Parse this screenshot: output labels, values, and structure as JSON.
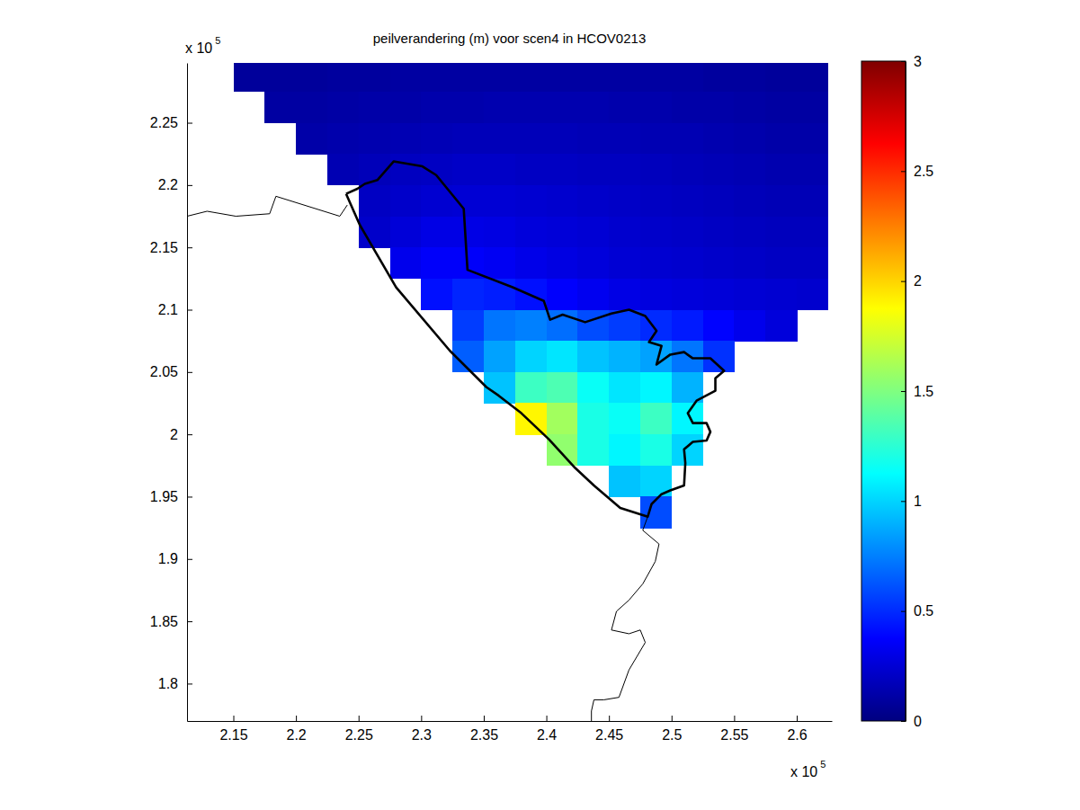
{
  "chart_data": {
    "type": "heatmap",
    "title": "peilverandering (m) voor scen4 in HCOV0213",
    "color": "jet",
    "x_multiplier": {
      "base": "x 10",
      "exponent": "5"
    },
    "y_multiplier": {
      "base": "x 10",
      "exponent": "5"
    },
    "xlim": [
      2.113,
      2.628
    ],
    "ylim": [
      1.77,
      2.298
    ],
    "xticks": [
      2.15,
      2.2,
      2.25,
      2.3,
      2.35,
      2.4,
      2.45,
      2.5,
      2.55,
      2.6
    ],
    "yticks": [
      1.8,
      1.85,
      1.9,
      1.95,
      2,
      2.05,
      2.1,
      2.15,
      2.2,
      2.25
    ],
    "color_range": [
      0,
      3
    ],
    "color_ticks": [
      0,
      0.5,
      1,
      1.5,
      2,
      2.5,
      3
    ],
    "x": [
      2.1625,
      2.1875,
      2.2125,
      2.2375,
      2.2625,
      2.2875,
      2.3125,
      2.3375,
      2.3625,
      2.3875,
      2.4125,
      2.4375,
      2.4625,
      2.4875,
      2.5125,
      2.5375,
      2.5625,
      2.5875,
      2.6125
    ],
    "y": [
      2.2875,
      2.2625,
      2.2375,
      2.2125,
      2.1875,
      2.1625,
      2.1375,
      2.1125,
      2.0875,
      2.0625,
      2.0375,
      2.0125,
      1.9875,
      1.9625,
      1.9375
    ],
    "values": [
      [
        0.08,
        0.08,
        0.08,
        0.09,
        0.09,
        0.1,
        0.1,
        0.1,
        0.1,
        0.1,
        0.1,
        0.1,
        0.1,
        0.1,
        0.1,
        0.09,
        0.09,
        0.08,
        0.08
      ],
      [
        null,
        0.1,
        0.1,
        0.11,
        0.12,
        0.12,
        0.13,
        0.13,
        0.14,
        0.14,
        0.14,
        0.14,
        0.13,
        0.13,
        0.12,
        0.12,
        0.11,
        0.1,
        0.1
      ],
      [
        null,
        null,
        0.12,
        0.13,
        0.14,
        0.15,
        0.16,
        0.17,
        0.17,
        0.17,
        0.17,
        0.16,
        0.16,
        0.15,
        0.15,
        0.14,
        0.13,
        0.12,
        0.12
      ],
      [
        null,
        null,
        null,
        0.15,
        0.17,
        0.19,
        0.2,
        0.21,
        0.21,
        0.2,
        0.2,
        0.19,
        0.19,
        0.18,
        0.17,
        0.16,
        0.15,
        0.14,
        0.14
      ],
      [
        null,
        null,
        null,
        null,
        0.2,
        0.22,
        0.24,
        0.25,
        0.25,
        0.24,
        0.23,
        0.22,
        0.21,
        0.2,
        0.19,
        0.18,
        0.17,
        0.16,
        0.16
      ],
      [
        null,
        null,
        null,
        null,
        0.22,
        0.26,
        0.3,
        0.3,
        0.29,
        0.27,
        0.26,
        0.25,
        0.23,
        0.22,
        0.21,
        0.2,
        0.19,
        0.18,
        0.18
      ],
      [
        null,
        null,
        null,
        null,
        null,
        0.32,
        0.36,
        0.36,
        0.34,
        0.31,
        0.29,
        0.27,
        0.25,
        0.24,
        0.23,
        0.22,
        0.21,
        0.2,
        0.2
      ],
      [
        null,
        null,
        null,
        null,
        null,
        null,
        0.42,
        0.48,
        0.46,
        0.42,
        0.37,
        0.33,
        0.3,
        0.28,
        0.27,
        0.26,
        0.25,
        0.24,
        0.23
      ],
      [
        null,
        null,
        null,
        null,
        null,
        null,
        null,
        0.55,
        0.72,
        0.75,
        0.7,
        0.6,
        0.55,
        0.5,
        0.45,
        0.38,
        0.32,
        0.27,
        null
      ],
      [
        null,
        null,
        null,
        null,
        null,
        null,
        null,
        0.65,
        0.85,
        1,
        1.05,
        0.95,
        0.9,
        0.85,
        0.72,
        0.52,
        null,
        null,
        null
      ],
      [
        null,
        null,
        null,
        null,
        null,
        null,
        null,
        null,
        0.95,
        1.3,
        1.35,
        1.15,
        1.05,
        1.1,
        0.9,
        null,
        null,
        null,
        null
      ],
      [
        null,
        null,
        null,
        null,
        null,
        null,
        null,
        null,
        null,
        1.9,
        1.6,
        1.2,
        1.15,
        1.3,
        1.1,
        null,
        null,
        null,
        null
      ],
      [
        null,
        null,
        null,
        null,
        null,
        null,
        null,
        null,
        null,
        null,
        1.55,
        1.2,
        1.1,
        1.2,
        1,
        null,
        null,
        null,
        null
      ],
      [
        null,
        null,
        null,
        null,
        null,
        null,
        null,
        null,
        null,
        null,
        null,
        null,
        0.95,
        1,
        null,
        null,
        null,
        null,
        null
      ],
      [
        null,
        null,
        null,
        null,
        null,
        null,
        null,
        null,
        null,
        null,
        null,
        null,
        null,
        0.6,
        null,
        null,
        null,
        null,
        null
      ]
    ],
    "boundaries": [
      {
        "line_style": "thick",
        "x": [
          2.24,
          2.249,
          2.255,
          2.265,
          2.278,
          2.301,
          2.312,
          2.334,
          2.337,
          2.373,
          2.398,
          2.403,
          2.413,
          2.431,
          2.452,
          2.466,
          2.479,
          2.488,
          2.482,
          2.492,
          2.488,
          2.499,
          2.51,
          2.517,
          2.531,
          2.542,
          2.535,
          2.535,
          2.52,
          2.513,
          2.517,
          2.528,
          2.531,
          2.528,
          2.517,
          2.51,
          2.511,
          2.51,
          2.499,
          2.492,
          2.484,
          2.481,
          2.459,
          2.438,
          2.423,
          2.402,
          2.38,
          2.362,
          2.352,
          2.323,
          2.28,
          2.251,
          2.24
        ],
        "y": [
          2.193,
          2.197,
          2.201,
          2.204,
          2.219,
          2.215,
          2.208,
          2.181,
          2.132,
          2.118,
          2.107,
          2.092,
          2.096,
          2.09,
          2.097,
          2.1,
          2.095,
          2.083,
          2.074,
          2.071,
          2.056,
          2.064,
          2.066,
          2.061,
          2.061,
          2.051,
          2.045,
          2.035,
          2.027,
          2.017,
          2.009,
          2.009,
          2.002,
          1.995,
          1.994,
          1.988,
          1.977,
          1.959,
          1.955,
          1.952,
          1.944,
          1.934,
          1.941,
          1.959,
          1.973,
          1.996,
          2.017,
          2.031,
          2.038,
          2.067,
          2.118,
          2.168,
          2.193
        ]
      },
      {
        "line_style": "thin",
        "x": [
          2.113,
          2.129,
          2.152,
          2.179,
          2.184,
          2.235,
          2.241
        ],
        "y": [
          2.175,
          2.179,
          2.175,
          2.177,
          2.191,
          2.175,
          2.184
        ]
      },
      {
        "line_style": "thin",
        "x": [
          2.481,
          2.477,
          2.49,
          2.487,
          2.477,
          2.466,
          2.456,
          2.452,
          2.466,
          2.475,
          2.479,
          2.466,
          2.458,
          2.446,
          2.438,
          2.436,
          2.436
        ],
        "y": [
          1.934,
          1.923,
          1.912,
          1.898,
          1.88,
          1.867,
          1.858,
          1.843,
          1.84,
          1.843,
          1.833,
          1.811,
          1.789,
          1.787,
          1.787,
          1.778,
          1.77
        ]
      }
    ]
  }
}
